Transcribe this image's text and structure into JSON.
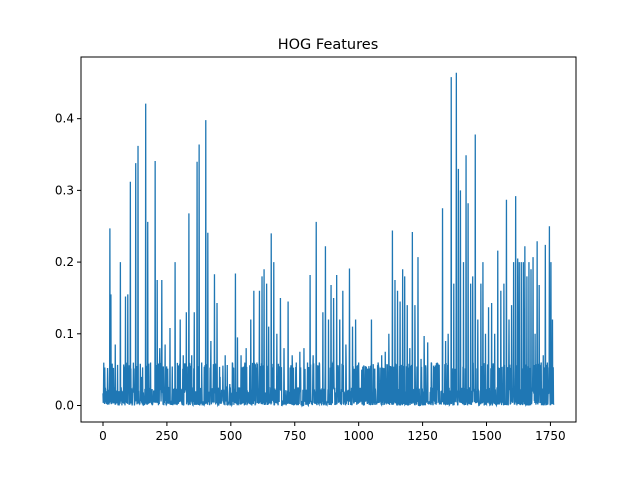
{
  "chart_data": {
    "type": "line",
    "title": "HOG Features",
    "xlabel": "",
    "ylabel": "",
    "xlim": [
      -86,
      1850
    ],
    "ylim": [
      -0.023,
      0.486
    ],
    "xticks": [
      0,
      250,
      500,
      750,
      1000,
      1250,
      1500,
      1750
    ],
    "xtick_labels": [
      "0",
      "250",
      "500",
      "750",
      "1000",
      "1250",
      "1500",
      "1750"
    ],
    "yticks": [
      0.0,
      0.1,
      0.2,
      0.3,
      0.4
    ],
    "ytick_labels": [
      "0.0",
      "0.1",
      "0.2",
      "0.3",
      "0.4"
    ],
    "grid": false,
    "line_color": "#1f77b4",
    "series": [
      {
        "n_points": 1764,
        "baseline_range": [
          0.0,
          0.06
        ],
        "peaks": [
          [
            0,
            0.017
          ],
          [
            4,
            0.012
          ],
          [
            12,
            0.02
          ],
          [
            27,
            0.247
          ],
          [
            31,
            0.155
          ],
          [
            38,
            0.05
          ],
          [
            48,
            0.085
          ],
          [
            68,
            0.2
          ],
          [
            88,
            0.152
          ],
          [
            97,
            0.155
          ],
          [
            107,
            0.312
          ],
          [
            122,
            0.027
          ],
          [
            128,
            0.338
          ],
          [
            137,
            0.362
          ],
          [
            150,
            0.04
          ],
          [
            167,
            0.421
          ],
          [
            175,
            0.256
          ],
          [
            186,
            0.06
          ],
          [
            204,
            0.341
          ],
          [
            212,
            0.175
          ],
          [
            222,
            0.08
          ],
          [
            230,
            0.175
          ],
          [
            243,
            0.085
          ],
          [
            262,
            0.108
          ],
          [
            282,
            0.2
          ],
          [
            294,
            0.056
          ],
          [
            302,
            0.12
          ],
          [
            314,
            0.07
          ],
          [
            326,
            0.13
          ],
          [
            336,
            0.268
          ],
          [
            347,
            0.07
          ],
          [
            357,
            0.13
          ],
          [
            368,
            0.34
          ],
          [
            376,
            0.364
          ],
          [
            386,
            0.06
          ],
          [
            402,
            0.398
          ],
          [
            410,
            0.241
          ],
          [
            422,
            0.09
          ],
          [
            436,
            0.183
          ],
          [
            446,
            0.143
          ],
          [
            458,
            0.04
          ],
          [
            478,
            0.07
          ],
          [
            496,
            0.03
          ],
          [
            506,
            0.06
          ],
          [
            518,
            0.184
          ],
          [
            526,
            0.095
          ],
          [
            540,
            0.07
          ],
          [
            560,
            0.08
          ],
          [
            578,
            0.12
          ],
          [
            590,
            0.16
          ],
          [
            602,
            0.06
          ],
          [
            612,
            0.16
          ],
          [
            622,
            0.18
          ],
          [
            630,
            0.19
          ],
          [
            640,
            0.17
          ],
          [
            648,
            0.11
          ],
          [
            658,
            0.24
          ],
          [
            668,
            0.2
          ],
          [
            680,
            0.1
          ],
          [
            694,
            0.15
          ],
          [
            708,
            0.08
          ],
          [
            724,
            0.145
          ],
          [
            740,
            0.07
          ],
          [
            756,
            0.06
          ],
          [
            770,
            0.075
          ],
          [
            786,
            0.08
          ],
          [
            800,
            0.06
          ],
          [
            810,
            0.182
          ],
          [
            822,
            0.07
          ],
          [
            834,
            0.256
          ],
          [
            846,
            0.06
          ],
          [
            860,
            0.13
          ],
          [
            870,
            0.222
          ],
          [
            882,
            0.12
          ],
          [
            892,
            0.168
          ],
          [
            902,
            0.15
          ],
          [
            914,
            0.182
          ],
          [
            926,
            0.12
          ],
          [
            938,
            0.16
          ],
          [
            950,
            0.085
          ],
          [
            964,
            0.191
          ],
          [
            976,
            0.11
          ],
          [
            988,
            0.12
          ],
          [
            1000,
            0.06
          ],
          [
            1012,
            0.05
          ],
          [
            1028,
            0.035
          ],
          [
            1040,
            0.055
          ],
          [
            1050,
            0.12
          ],
          [
            1062,
            0.05
          ],
          [
            1076,
            0.06
          ],
          [
            1090,
            0.07
          ],
          [
            1104,
            0.075
          ],
          [
            1118,
            0.1
          ],
          [
            1132,
            0.244
          ],
          [
            1142,
            0.175
          ],
          [
            1152,
            0.16
          ],
          [
            1162,
            0.145
          ],
          [
            1172,
            0.19
          ],
          [
            1180,
            0.18
          ],
          [
            1190,
            0.14
          ],
          [
            1200,
            0.08
          ],
          [
            1210,
            0.242
          ],
          [
            1220,
            0.14
          ],
          [
            1232,
            0.207
          ],
          [
            1244,
            0.065
          ],
          [
            1256,
            0.097
          ],
          [
            1270,
            0.088
          ],
          [
            1284,
            0.06
          ],
          [
            1298,
            0.04
          ],
          [
            1314,
            0.03
          ],
          [
            1328,
            0.275
          ],
          [
            1340,
            0.09
          ],
          [
            1350,
            0.1
          ],
          [
            1362,
            0.458
          ],
          [
            1372,
            0.17
          ],
          [
            1382,
            0.464
          ],
          [
            1390,
            0.33
          ],
          [
            1398,
            0.3
          ],
          [
            1410,
            0.2
          ],
          [
            1420,
            0.349
          ],
          [
            1428,
            0.282
          ],
          [
            1438,
            0.17
          ],
          [
            1446,
            0.18
          ],
          [
            1456,
            0.378
          ],
          [
            1466,
            0.12
          ],
          [
            1478,
            0.17
          ],
          [
            1486,
            0.2
          ],
          [
            1496,
            0.1
          ],
          [
            1508,
            0.137
          ],
          [
            1520,
            0.143
          ],
          [
            1532,
            0.1
          ],
          [
            1544,
            0.216
          ],
          [
            1556,
            0.16
          ],
          [
            1568,
            0.17
          ],
          [
            1578,
            0.287
          ],
          [
            1588,
            0.12
          ],
          [
            1598,
            0.14
          ],
          [
            1606,
            0.2
          ],
          [
            1614,
            0.292
          ],
          [
            1622,
            0.205
          ],
          [
            1628,
            0.2
          ],
          [
            1636,
            0.2
          ],
          [
            1644,
            0.2
          ],
          [
            1650,
            0.222
          ],
          [
            1658,
            0.18
          ],
          [
            1666,
            0.2
          ],
          [
            1674,
            0.19
          ],
          [
            1682,
            0.207
          ],
          [
            1690,
            0.1
          ],
          [
            1698,
            0.229
          ],
          [
            1706,
            0.168
          ],
          [
            1714,
            0.06
          ],
          [
            1722,
            0.07
          ],
          [
            1730,
            0.224
          ],
          [
            1738,
            0.06
          ],
          [
            1746,
            0.25
          ],
          [
            1752,
            0.2
          ],
          [
            1758,
            0.12
          ],
          [
            1763,
            0.001
          ]
        ]
      }
    ]
  }
}
